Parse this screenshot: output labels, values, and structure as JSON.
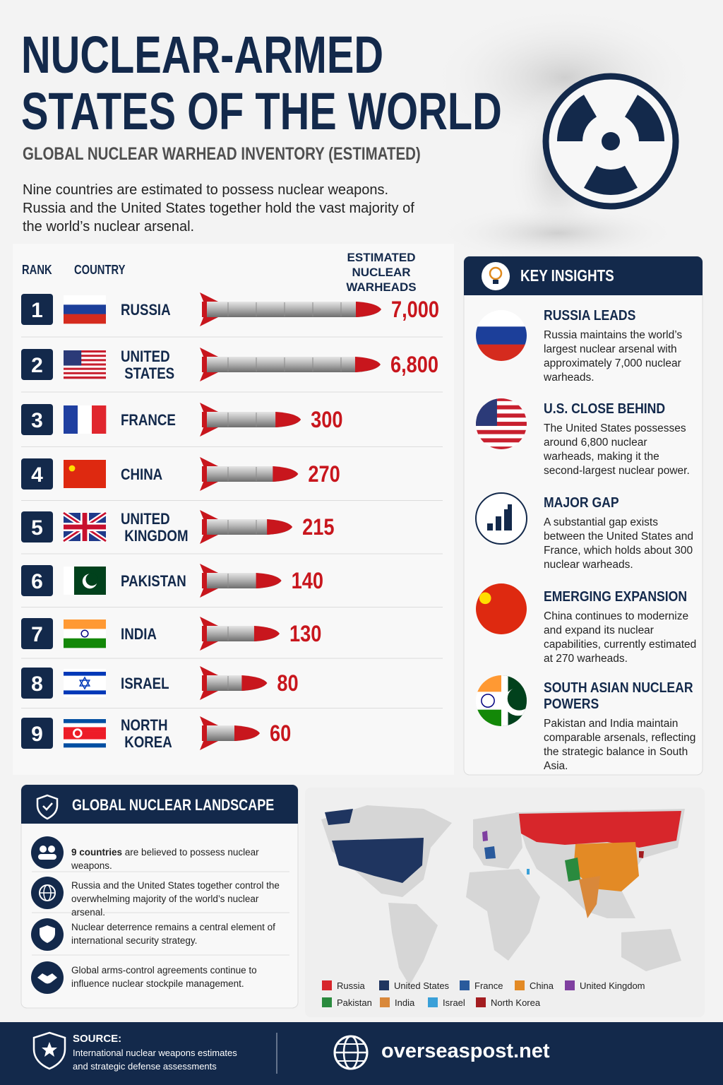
{
  "header": {
    "title_line1": "NUCLEAR-ARMED",
    "title_line2": "STATES OF THE WORLD",
    "subtitle": "GLOBAL NUCLEAR WARHEAD INVENTORY (ESTIMATED)",
    "intro": "Nine countries are estimated to possess nuclear weapons. Russia and the United States together hold the vast majority of the world’s nuclear arsenal."
  },
  "chart_data": {
    "type": "bar",
    "orientation": "horizontal",
    "log_scale": true,
    "rank_header": "RANK",
    "country_header": "COUNTRY",
    "value_header": "ESTIMATED NUCLEAR WARHEADS",
    "ranks": [
      1,
      2,
      3,
      4,
      5,
      6,
      7,
      8,
      9
    ],
    "categories": [
      "RUSSIA",
      "UNITED STATES",
      "FRANCE",
      "CHINA",
      "UNITED KINGDOM",
      "PAKISTAN",
      "INDIA",
      "ISRAEL",
      "NORTH KOREA"
    ],
    "values": [
      7000,
      6800,
      300,
      270,
      215,
      140,
      130,
      80,
      60
    ],
    "value_labels": [
      "7,000",
      "6,800",
      "300",
      "270",
      "215",
      "140",
      "130",
      "80",
      "60"
    ],
    "color": "#c8161d"
  },
  "insights": {
    "title": "KEY INSIGHTS",
    "items": [
      {
        "heading": "RUSSIA LEADS",
        "text": "Russia maintains the world’s largest nuclear arsenal with approximately 7,000 nuclear warheads."
      },
      {
        "heading": "U.S. CLOSE BEHIND",
        "text": "The United States possesses around 6,800 nuclear warheads, making it the second-largest nuclear power."
      },
      {
        "heading": "MAJOR GAP",
        "text": "A substantial gap exists between the United States and France, which holds about 300 nuclear warheads."
      },
      {
        "heading": "EMERGING EXPANSION",
        "text": "China continues to modernize and expand its nuclear capabilities, currently estimated at 270 warheads."
      },
      {
        "heading": "SOUTH ASIAN NUCLEAR POWERS",
        "text": "Pakistan and India maintain comparable arsenals, reflecting the strategic balance in South Asia."
      }
    ]
  },
  "landscape": {
    "title": "GLOBAL NUCLEAR LANDSCAPE",
    "items": [
      {
        "bold": "9 countries",
        "text": "are believed to possess nuclear weapons."
      },
      {
        "text": "Russia and the United States together control the overwhelming majority of the world’s nuclear arsenal."
      },
      {
        "text": "Nuclear deterrence remains a central element of international security strategy."
      },
      {
        "text": "Global arms-control agreements continue to influence nuclear stockpile management."
      }
    ]
  },
  "map": {
    "legend": [
      {
        "name": "Russia",
        "color": "#d7262b"
      },
      {
        "name": "United States",
        "color": "#1f3560"
      },
      {
        "name": "France",
        "color": "#2a5a9c"
      },
      {
        "name": "China",
        "color": "#e38a25"
      },
      {
        "name": "United Kingdom",
        "color": "#7f3fa0"
      },
      {
        "name": "Pakistan",
        "color": "#2a8a3e"
      },
      {
        "name": "India",
        "color": "#d9883a"
      },
      {
        "name": "Israel",
        "color": "#3aa0d8"
      },
      {
        "name": "North Korea",
        "color": "#a31d20"
      }
    ]
  },
  "footer": {
    "source_label": "SOURCE:",
    "source_text": "International nuclear weapons estimates and strategic defense assessments",
    "website": "overseaspost.net"
  }
}
